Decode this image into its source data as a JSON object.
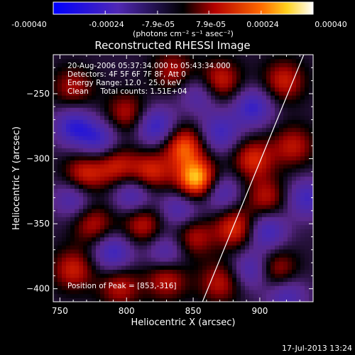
{
  "colorbar": {
    "tick_labels": [
      "-0.00040",
      "-0.00024",
      "-7.9e-05",
      "7.9e-05",
      "0.00024",
      "0.00040"
    ],
    "unit_label": "(photons cm⁻² s⁻¹ asec⁻²)",
    "range": [
      -0.0004,
      0.0004
    ]
  },
  "chart_data": {
    "type": "heatmap",
    "title": "Reconstructed RHESSI Image",
    "xlabel": "Heliocentric X (arcsec)",
    "ylabel": "Heliocentric Y (arcsec)",
    "xlim": [
      745,
      940
    ],
    "ylim": [
      -410,
      -220
    ],
    "x_ticks": [
      750,
      800,
      850,
      900
    ],
    "y_ticks": [
      -250,
      -300,
      -350,
      -400
    ],
    "annotations": [
      "20-Aug-2006 05:37:34.000 to 05:43:34.000",
      "Detectors: 4F 5F 6F 7F 8F, Att 0",
      "Energy Range: 12.0 - 25.0 keV",
      "Clean     Total counts: 1.51E+04"
    ],
    "peak_label": "Position of Peak = [853,-316]",
    "peak": [
      853,
      -316
    ],
    "limb_line": [
      [
        857,
        -410
      ],
      [
        933,
        -220
      ]
    ],
    "blobs": [
      {
        "x": 853,
        "y": -316,
        "v": 1.0
      },
      {
        "x": 843,
        "y": -290,
        "v": 0.7
      },
      {
        "x": 818,
        "y": -310,
        "v": 0.55
      },
      {
        "x": 792,
        "y": -305,
        "v": 0.5
      },
      {
        "x": 768,
        "y": -312,
        "v": 0.55
      },
      {
        "x": 800,
        "y": -265,
        "v": 0.45
      },
      {
        "x": 835,
        "y": -232,
        "v": 0.4
      },
      {
        "x": 870,
        "y": -240,
        "v": 0.55
      },
      {
        "x": 918,
        "y": -240,
        "v": 0.5
      },
      {
        "x": 895,
        "y": -300,
        "v": 0.55
      },
      {
        "x": 925,
        "y": -290,
        "v": 0.45
      },
      {
        "x": 775,
        "y": -350,
        "v": 0.45
      },
      {
        "x": 812,
        "y": -350,
        "v": 0.5
      },
      {
        "x": 850,
        "y": -360,
        "v": 0.45
      },
      {
        "x": 882,
        "y": -353,
        "v": 0.6
      },
      {
        "x": 905,
        "y": -330,
        "v": 0.45
      },
      {
        "x": 760,
        "y": -385,
        "v": 0.5
      },
      {
        "x": 795,
        "y": -398,
        "v": 0.45
      },
      {
        "x": 830,
        "y": -392,
        "v": 0.5
      },
      {
        "x": 870,
        "y": -395,
        "v": 0.45
      },
      {
        "x": 912,
        "y": -385,
        "v": 0.5
      },
      {
        "x": 760,
        "y": -245,
        "v": 0.4
      },
      {
        "x": 760,
        "y": -275,
        "v": -0.55
      },
      {
        "x": 780,
        "y": -285,
        "v": -0.5
      },
      {
        "x": 822,
        "y": -275,
        "v": -0.6
      },
      {
        "x": 870,
        "y": -280,
        "v": -0.5
      },
      {
        "x": 895,
        "y": -260,
        "v": -0.55
      },
      {
        "x": 805,
        "y": -328,
        "v": -0.5
      },
      {
        "x": 840,
        "y": -338,
        "v": -0.45
      },
      {
        "x": 870,
        "y": -325,
        "v": -0.5
      },
      {
        "x": 905,
        "y": -355,
        "v": -0.55
      },
      {
        "x": 790,
        "y": -372,
        "v": -0.55
      },
      {
        "x": 830,
        "y": -372,
        "v": -0.45
      },
      {
        "x": 895,
        "y": -385,
        "v": -0.5
      },
      {
        "x": 935,
        "y": -330,
        "v": -0.5
      },
      {
        "x": 855,
        "y": -250,
        "v": -0.4
      },
      {
        "x": 760,
        "y": -330,
        "v": -0.45
      },
      {
        "x": 920,
        "y": -405,
        "v": -0.45
      }
    ]
  },
  "timestamp": "17-Jul-2013 13:24"
}
